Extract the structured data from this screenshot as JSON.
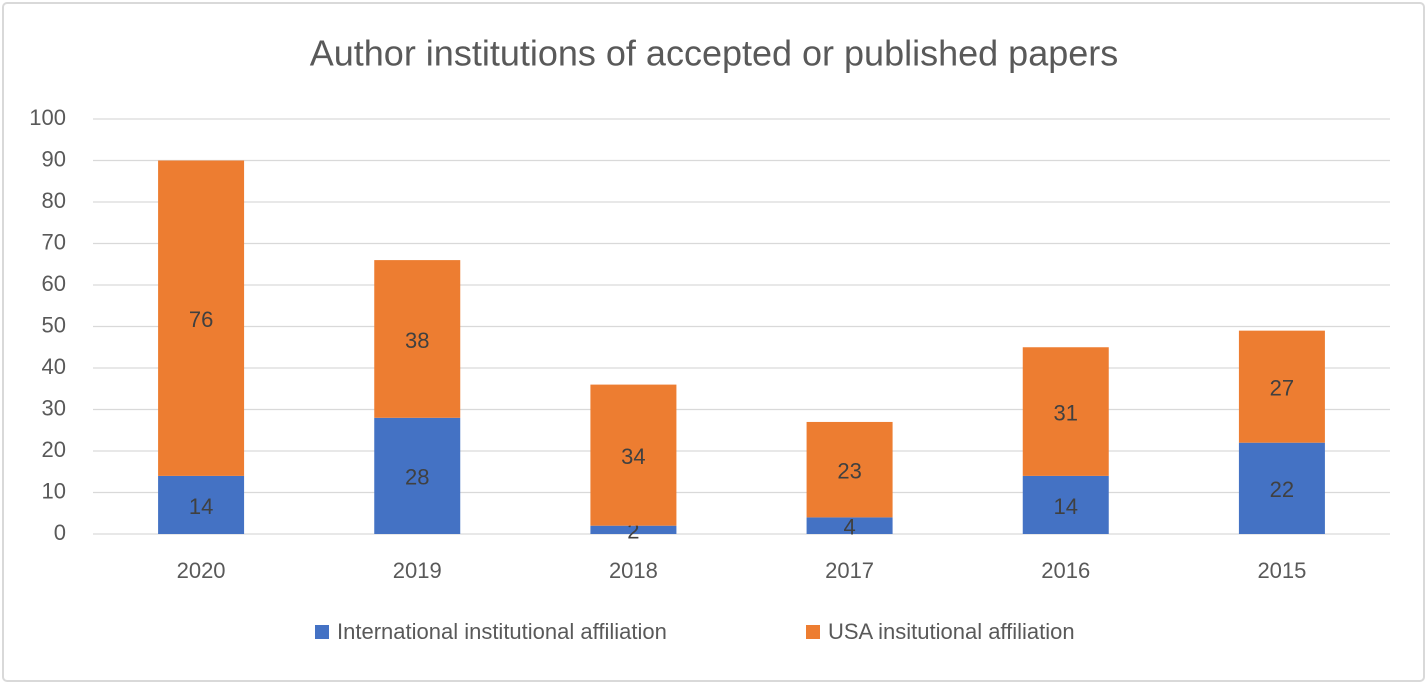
{
  "chart_data": {
    "type": "bar",
    "stacked": true,
    "title": "Author institutions of accepted or published papers",
    "categories": [
      "2020",
      "2019",
      "2018",
      "2017",
      "2016",
      "2015"
    ],
    "series": [
      {
        "name": "International institutional affiliation",
        "color": "#4472c4",
        "values": [
          14,
          28,
          2,
          4,
          14,
          22
        ]
      },
      {
        "name": "USA insitutional affiliation",
        "color": "#ed7d31",
        "values": [
          76,
          38,
          34,
          23,
          31,
          27
        ]
      }
    ],
    "ylim": [
      0,
      100
    ],
    "yticks": [
      0,
      10,
      20,
      30,
      40,
      50,
      60,
      70,
      80,
      90,
      100
    ],
    "grid": true,
    "legend": "bottom"
  }
}
